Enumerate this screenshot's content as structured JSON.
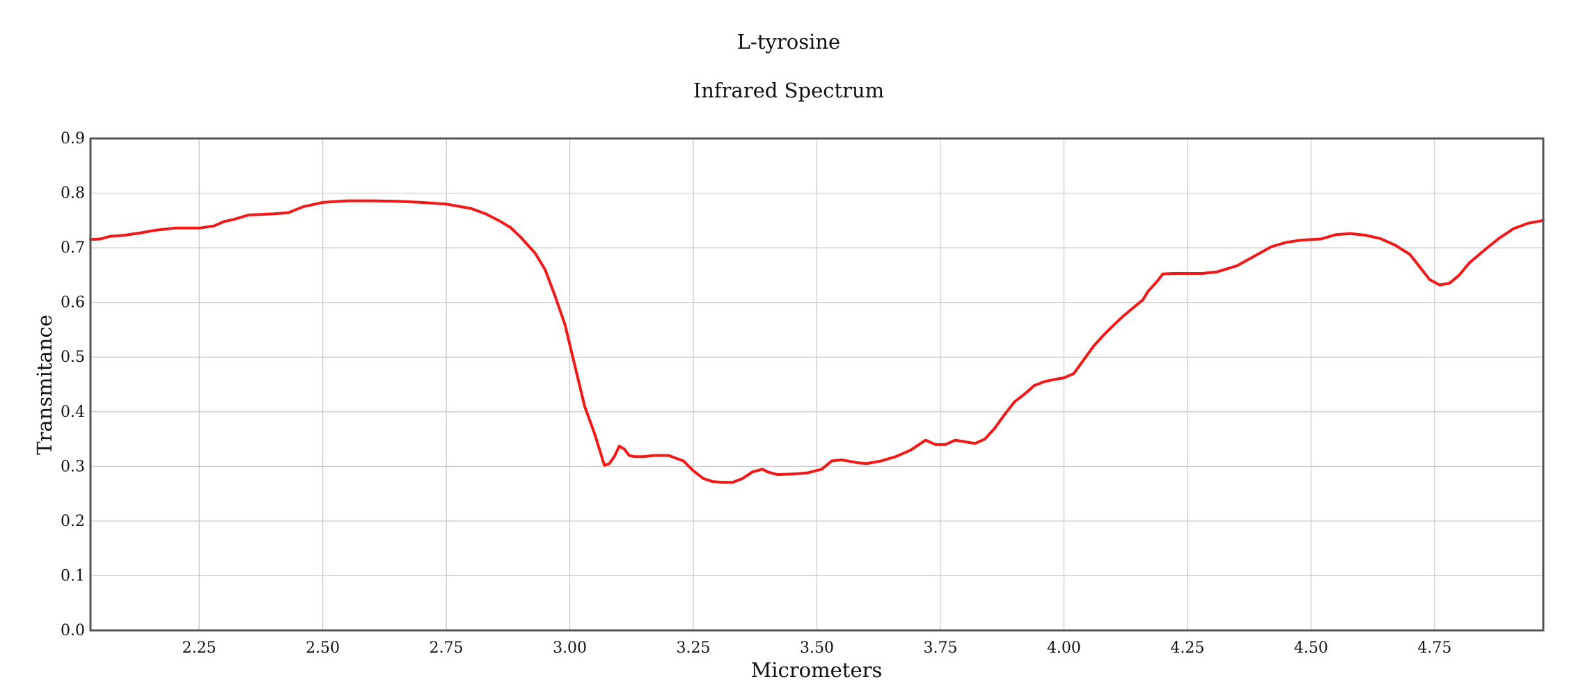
{
  "colors": {
    "series": "#f21818",
    "grid": "#c8c8c8",
    "frame": "#555555",
    "text": "#111111"
  },
  "chart_data": {
    "type": "line",
    "title": "L-tyrosine",
    "subtitle": "Infrared Spectrum",
    "xlabel": "Micrometers",
    "ylabel": "Transmitance",
    "xlim": [
      2.03,
      4.97
    ],
    "ylim": [
      0.0,
      0.9
    ],
    "x_ticks": [
      2.25,
      2.5,
      2.75,
      3.0,
      3.25,
      3.5,
      3.75,
      4.0,
      4.25,
      4.5,
      4.75
    ],
    "x_tick_labels": [
      "2.25",
      "2.50",
      "2.75",
      "3.00",
      "3.25",
      "3.50",
      "3.75",
      "4.00",
      "4.25",
      "4.50",
      "4.75"
    ],
    "y_ticks": [
      0.0,
      0.1,
      0.2,
      0.3,
      0.4,
      0.5,
      0.6,
      0.7,
      0.8,
      0.9
    ],
    "y_tick_labels": [
      "0.0",
      "0.1",
      "0.2",
      "0.3",
      "0.4",
      "0.5",
      "0.6",
      "0.7",
      "0.8",
      "0.9"
    ],
    "grid": true,
    "legend": "none",
    "series": [
      {
        "x": [
          2.03,
          2.05,
          2.07,
          2.1,
          2.13,
          2.16,
          2.2,
          2.25,
          2.28,
          2.3,
          2.32,
          2.35,
          2.4,
          2.43,
          2.46,
          2.5,
          2.55,
          2.6,
          2.65,
          2.7,
          2.75,
          2.8,
          2.83,
          2.86,
          2.88,
          2.9,
          2.93,
          2.95,
          2.97,
          2.99,
          3.01,
          3.03,
          3.05,
          3.07,
          3.08,
          3.09,
          3.1,
          3.11,
          3.12,
          3.13,
          3.15,
          3.17,
          3.2,
          3.23,
          3.25,
          3.27,
          3.29,
          3.31,
          3.33,
          3.35,
          3.37,
          3.39,
          3.4,
          3.42,
          3.45,
          3.48,
          3.51,
          3.53,
          3.55,
          3.58,
          3.6,
          3.63,
          3.66,
          3.69,
          3.72,
          3.74,
          3.76,
          3.78,
          3.8,
          3.82,
          3.84,
          3.86,
          3.88,
          3.9,
          3.92,
          3.94,
          3.96,
          3.98,
          4.0,
          4.02,
          4.04,
          4.06,
          4.08,
          4.1,
          4.12,
          4.14,
          4.16,
          4.17,
          4.19,
          4.2,
          4.22,
          4.25,
          4.28,
          4.31,
          4.35,
          4.38,
          4.4,
          4.42,
          4.45,
          4.48,
          4.52,
          4.55,
          4.58,
          4.61,
          4.64,
          4.67,
          4.7,
          4.72,
          4.74,
          4.76,
          4.78,
          4.8,
          4.82,
          4.85,
          4.88,
          4.91,
          4.94,
          4.97
        ],
        "y": [
          0.715,
          0.716,
          0.721,
          0.723,
          0.727,
          0.732,
          0.736,
          0.736,
          0.74,
          0.748,
          0.752,
          0.76,
          0.762,
          0.764,
          0.775,
          0.783,
          0.786,
          0.786,
          0.785,
          0.783,
          0.78,
          0.772,
          0.762,
          0.748,
          0.737,
          0.72,
          0.69,
          0.66,
          0.612,
          0.56,
          0.485,
          0.41,
          0.36,
          0.302,
          0.305,
          0.318,
          0.337,
          0.332,
          0.32,
          0.318,
          0.318,
          0.32,
          0.32,
          0.31,
          0.292,
          0.278,
          0.272,
          0.271,
          0.271,
          0.278,
          0.29,
          0.295,
          0.29,
          0.285,
          0.286,
          0.288,
          0.295,
          0.31,
          0.312,
          0.307,
          0.305,
          0.31,
          0.318,
          0.33,
          0.348,
          0.34,
          0.34,
          0.348,
          0.345,
          0.342,
          0.35,
          0.37,
          0.395,
          0.418,
          0.432,
          0.448,
          0.455,
          0.459,
          0.462,
          0.47,
          0.495,
          0.52,
          0.54,
          0.558,
          0.575,
          0.59,
          0.605,
          0.62,
          0.64,
          0.652,
          0.653,
          0.653,
          0.653,
          0.656,
          0.667,
          0.682,
          0.692,
          0.702,
          0.71,
          0.714,
          0.716,
          0.724,
          0.726,
          0.723,
          0.717,
          0.705,
          0.688,
          0.665,
          0.642,
          0.632,
          0.635,
          0.65,
          0.672,
          0.695,
          0.717,
          0.735,
          0.745,
          0.75
        ]
      }
    ]
  }
}
